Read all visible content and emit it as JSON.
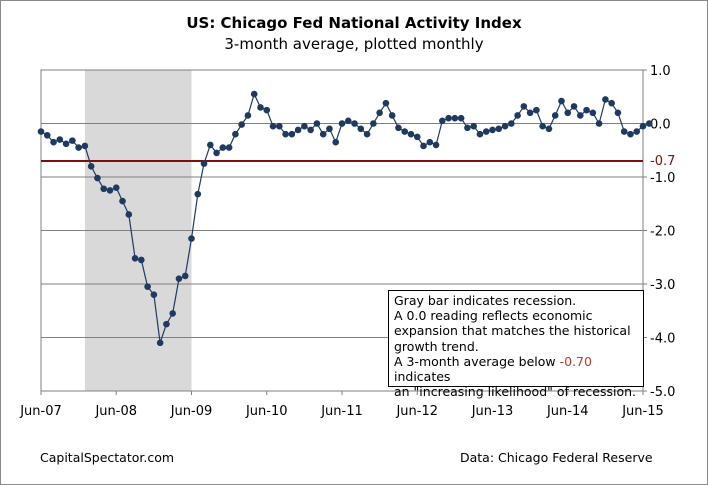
{
  "chart_data": {
    "type": "line",
    "title": "US: Chicago Fed National Activity Index",
    "subtitle": "3-month average, plotted monthly",
    "x_tick_labels": [
      "Jun-07",
      "Jun-08",
      "Jun-09",
      "Jun-10",
      "Jun-11",
      "Jun-12",
      "Jun-13",
      "Jun-14",
      "Jun-15"
    ],
    "y_tick_labels": [
      "1.0",
      "0.0",
      "-1.0",
      "-2.0",
      "-3.0",
      "-4.0",
      "-5.0"
    ],
    "ylim": [
      -5.0,
      1.0
    ],
    "y_ticks": [
      1.0,
      0.0,
      -1.0,
      -2.0,
      -3.0,
      -4.0,
      -5.0
    ],
    "grid": "horizontal",
    "start_month": "Jun-07",
    "values": [
      -0.15,
      -0.22,
      -0.35,
      -0.3,
      -0.38,
      -0.32,
      -0.45,
      -0.42,
      -0.8,
      -1.02,
      -1.22,
      -1.25,
      -1.2,
      -1.45,
      -1.7,
      -2.52,
      -2.55,
      -3.05,
      -3.2,
      -4.1,
      -3.75,
      -3.55,
      -2.9,
      -2.85,
      -2.15,
      -1.32,
      -0.75,
      -0.4,
      -0.55,
      -0.45,
      -0.45,
      -0.2,
      -0.02,
      0.15,
      0.55,
      0.3,
      0.25,
      -0.05,
      -0.05,
      -0.2,
      -0.2,
      -0.12,
      -0.05,
      -0.12,
      0.0,
      -0.2,
      -0.1,
      -0.35,
      0.0,
      0.05,
      0.0,
      -0.1,
      -0.2,
      0.0,
      0.2,
      0.38,
      0.15,
      -0.08,
      -0.15,
      -0.2,
      -0.25,
      -0.42,
      -0.35,
      -0.4,
      0.05,
      0.1,
      0.1,
      0.1,
      -0.08,
      -0.05,
      -0.2,
      -0.15,
      -0.12,
      -0.1,
      -0.05,
      0.0,
      0.15,
      0.32,
      0.2,
      0.25,
      -0.05,
      -0.1,
      0.15,
      0.42,
      0.2,
      0.32,
      0.15,
      0.25,
      0.2,
      0.0,
      0.45,
      0.38,
      0.2,
      -0.15,
      -0.2,
      -0.15,
      -0.05,
      0.0
    ],
    "recession": {
      "start": "Jan-08",
      "end": "Jun-09"
    },
    "threshold": {
      "value": -0.7,
      "label": "-0.7",
      "color": "#7a1010"
    },
    "marker_color": "#1f3a60",
    "line_color": "#1f3a60",
    "recession_color": "#d9d9d9",
    "grid_color": "#808080"
  },
  "notes": {
    "line1": "Gray bar indicates recession.",
    "line2": "A 0.0 reading reflects economic",
    "line3": "expansion that matches the historical",
    "line4": "growth trend.",
    "line5_pre": "A 3-month average below ",
    "line5_red": "-0.70",
    "line5_post": " indicates",
    "line6": "an \"increasing likelihood\" of recession."
  },
  "footer": {
    "left": "CapitalSpectator.com",
    "right": "Data: Chicago Federal Reserve"
  }
}
